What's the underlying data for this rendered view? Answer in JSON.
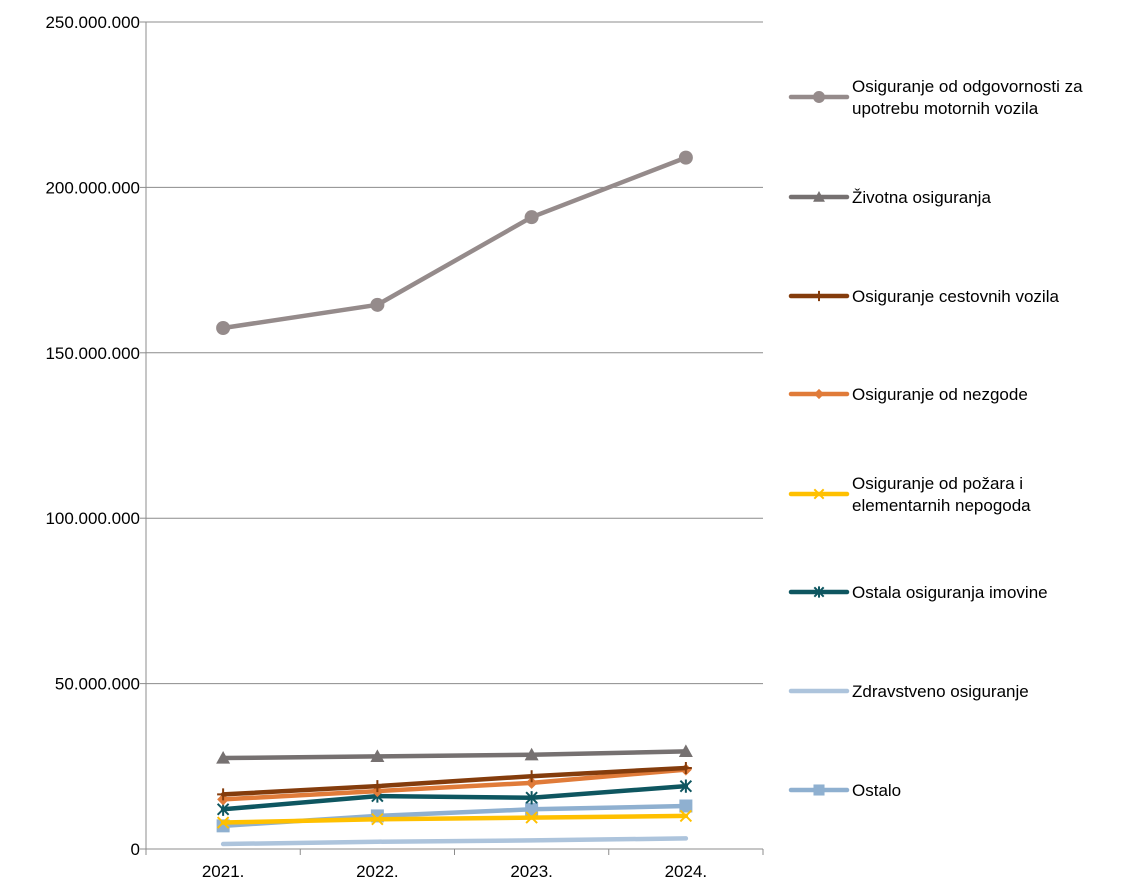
{
  "chart_data": {
    "type": "line",
    "categories": [
      "2021.",
      "2022.",
      "2023.",
      "2024."
    ],
    "y_ticks": [
      "0",
      "50.000.000",
      "100.000.000",
      "150.000.000",
      "200.000.000",
      "250.000.000"
    ],
    "ylim": [
      0,
      250000000
    ],
    "grid": true,
    "legend_position": "right",
    "series": [
      {
        "name": "Osiguranje od odgovornosti za upotrebu motornih vozila",
        "legend_lines": [
          "Osiguranje od odgovornosti za",
          "upotrebu motornih vozila"
        ],
        "color": "#958b8b",
        "marker": "circle",
        "values": [
          157500000,
          164500000,
          191000000,
          209000000
        ]
      },
      {
        "name": "Životna osiguranja",
        "legend_lines": [
          "Životna osiguranja"
        ],
        "color": "#767171",
        "marker": "triangle",
        "values": [
          27500000,
          28000000,
          28500000,
          29500000
        ]
      },
      {
        "name": "Osiguranje cestovnih vozila",
        "legend_lines": [
          "Osiguranje cestovnih vozila"
        ],
        "color": "#843c0c",
        "marker": "plus",
        "values": [
          16500000,
          19000000,
          22000000,
          24500000
        ]
      },
      {
        "name": "Osiguranje od nezgode",
        "legend_lines": [
          "Osiguranje od nezgode"
        ],
        "color": "#e07b39",
        "marker": "diamond",
        "values": [
          15000000,
          17500000,
          20000000,
          24000000
        ]
      },
      {
        "name": "Osiguranje od požara i elementarnih nepogoda",
        "legend_lines": [
          "Osiguranje od požara i",
          "elementarnih nepogoda"
        ],
        "color": "#ffc000",
        "marker": "x",
        "values": [
          8000000,
          9000000,
          9500000,
          10000000
        ]
      },
      {
        "name": "Ostala osiguranja imovine",
        "legend_lines": [
          "Ostala osiguranja imovine"
        ],
        "color": "#0e5660",
        "marker": "star",
        "values": [
          12000000,
          16000000,
          15500000,
          19000000
        ]
      },
      {
        "name": "Zdravstveno osiguranje",
        "legend_lines": [
          "Zdravstveno osiguranje"
        ],
        "color": "#adc4dc",
        "marker": "none",
        "values": [
          1500000,
          2200000,
          2600000,
          3200000
        ]
      },
      {
        "name": "Ostalo",
        "legend_lines": [
          "Ostalo"
        ],
        "color": "#8fb0d0",
        "marker": "square",
        "values": [
          7000000,
          10000000,
          12000000,
          13000000
        ]
      }
    ]
  }
}
